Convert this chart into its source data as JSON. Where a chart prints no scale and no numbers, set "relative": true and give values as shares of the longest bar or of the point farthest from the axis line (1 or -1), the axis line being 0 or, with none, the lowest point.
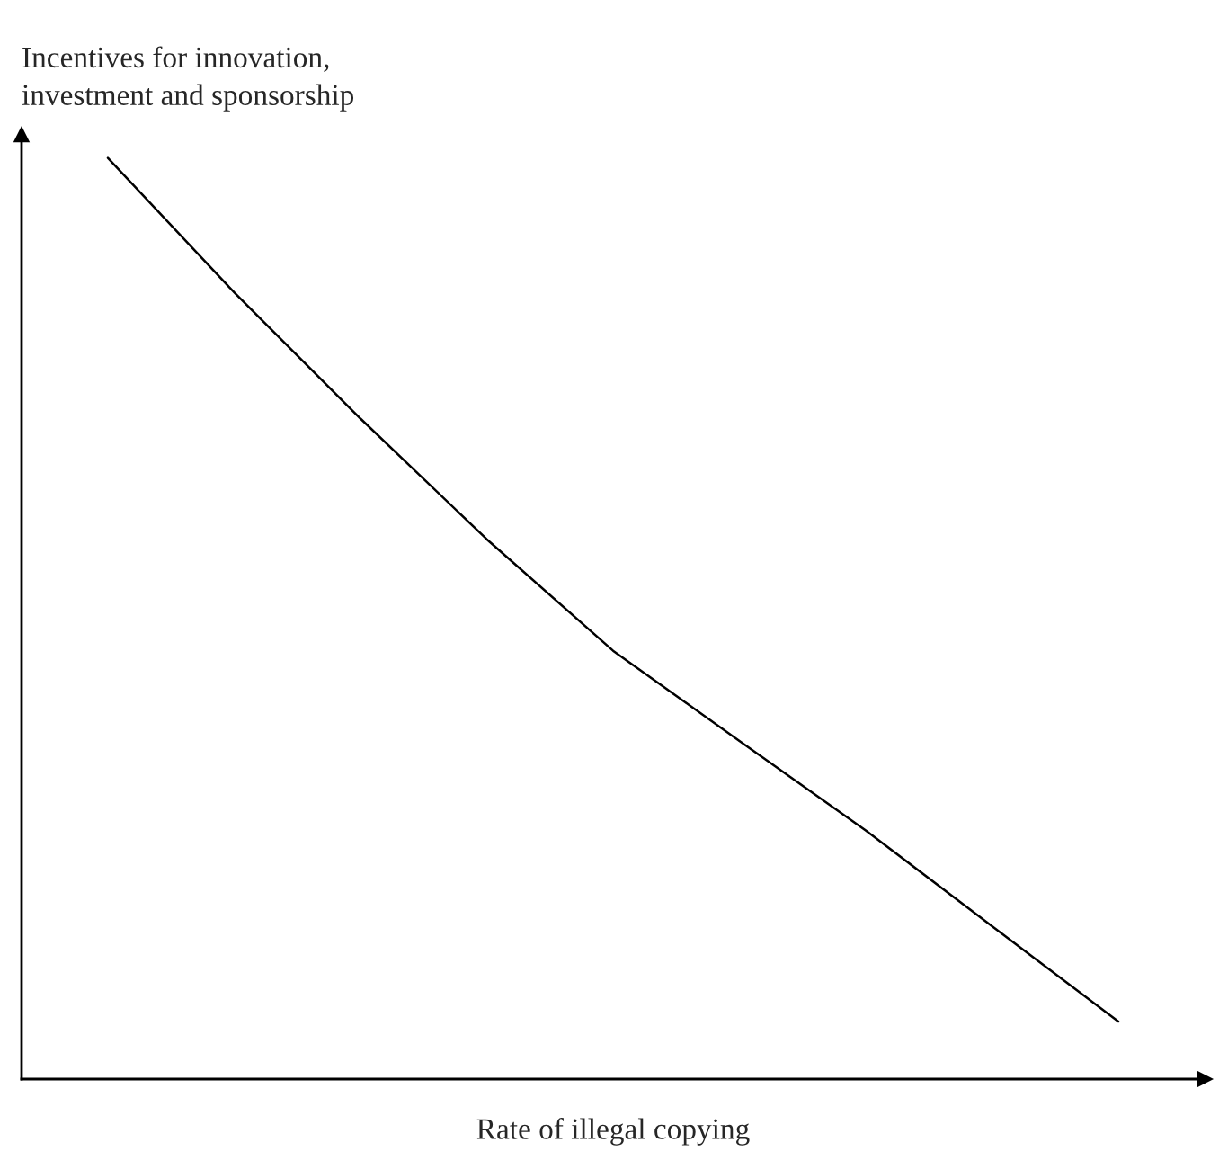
{
  "chart_data": {
    "type": "line",
    "relative": true,
    "xlabel": "Rate of illegal copying",
    "ylabel": "Incentives for innovation,\ninvestment and sponsorship",
    "categories": [
      null,
      null,
      null,
      null,
      null,
      null,
      null,
      null,
      null
    ],
    "color": "#000000",
    "values": [
      1,
      0.854,
      0.717,
      0.586,
      0.465,
      0.367,
      0.27,
      0.166,
      0.0625
    ]
  }
}
